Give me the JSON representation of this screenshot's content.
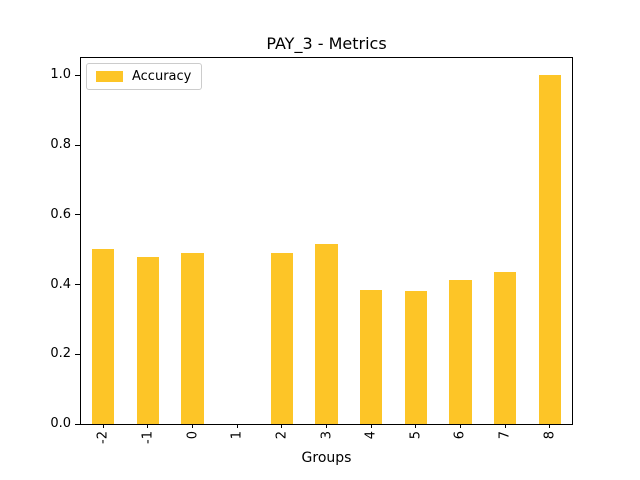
{
  "chart_data": {
    "type": "bar",
    "title": "PAY_3 - Metrics",
    "xlabel": "Groups",
    "ylabel": "",
    "categories": [
      "-2",
      "-1",
      "0",
      "1",
      "2",
      "3",
      "4",
      "5",
      "6",
      "7",
      "8"
    ],
    "series": [
      {
        "name": "Accuracy",
        "values": [
          0.503,
          0.479,
          0.492,
          0.0,
          0.49,
          0.516,
          0.385,
          0.382,
          0.413,
          0.437,
          1.0
        ]
      }
    ],
    "yticks": [
      0.0,
      0.2,
      0.4,
      0.6,
      0.8,
      1.0
    ],
    "ylim": [
      0,
      1.05
    ],
    "bar_color": "#FDC527",
    "bar_width_fraction": 0.5,
    "grid": false,
    "legend_position": "upper left",
    "x_tick_rotation": 90
  }
}
